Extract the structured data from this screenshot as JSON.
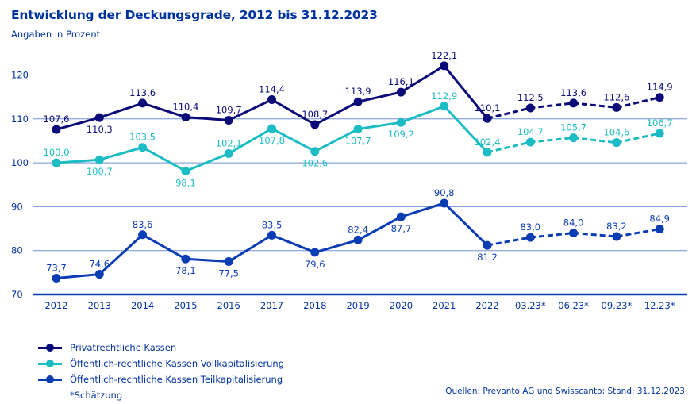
{
  "header": {
    "title": "Entwicklung der Deckungsgrade, 2012 bis 31.12.2023",
    "subtitle": "Angaben in Prozent"
  },
  "footer": {
    "note": "*Schätzung",
    "source": "Quellen: Prevanto AG und Swisscanto; Stand: 31.12.2023"
  },
  "chart_data": {
    "type": "line",
    "title": "Entwicklung der Deckungsgrade, 2012 bis 31.12.2023",
    "subtitle": "Angaben in Prozent",
    "xlabel": "",
    "ylabel": "",
    "ylim": [
      70,
      125
    ],
    "yticks": [
      70,
      80,
      90,
      100,
      110,
      120
    ],
    "grid": true,
    "legend_position": "bottom-left",
    "categories": [
      "2012",
      "2013",
      "2014",
      "2015",
      "2016",
      "2017",
      "2018",
      "2019",
      "2020",
      "2021",
      "2022",
      "03.23*",
      "06.23*",
      "09.23*",
      "12.23*"
    ],
    "estimate_start_index": 10,
    "series": [
      {
        "name": "Privatrechtliche Kassen",
        "color": "#0a0a78",
        "values": [
          107.6,
          110.3,
          113.6,
          110.4,
          109.7,
          114.4,
          108.7,
          113.9,
          116.1,
          122.1,
          110.1,
          112.5,
          113.6,
          112.6,
          114.9
        ],
        "labels": [
          "107,6",
          "110,3",
          "113,6",
          "110,4",
          "109,7",
          "114,4",
          "108,7",
          "113,9",
          "116,1",
          "122,1",
          "110,1",
          "112,5",
          "113,6",
          "112,6",
          "114,9"
        ],
        "label_pos": [
          "above",
          "below",
          "above",
          "above",
          "above",
          "above",
          "above",
          "above",
          "above",
          "above",
          "above",
          "above",
          "above",
          "above",
          "above"
        ]
      },
      {
        "name": "Öffentlich-rechtliche Kassen Vollkapitalisierung",
        "color": "#1cbcc4",
        "values": [
          100.0,
          100.7,
          103.5,
          98.1,
          102.1,
          107.8,
          102.6,
          107.7,
          109.2,
          112.9,
          102.4,
          104.7,
          105.7,
          104.6,
          106.7
        ],
        "labels": [
          "100,0",
          "100,7",
          "103,5",
          "98,1",
          "102,1",
          "107,8",
          "102,6",
          "107,7",
          "109,2",
          "112,9",
          "102,4",
          "104,7",
          "105,7",
          "104,6",
          "106,7"
        ],
        "label_pos": [
          "above",
          "below",
          "above",
          "below",
          "above",
          "below",
          "below",
          "below",
          "below",
          "above",
          "above",
          "above",
          "above",
          "above",
          "above"
        ]
      },
      {
        "name": "Öffentlich-rechtliche Kassen Teilkapitalisierung",
        "color": "#0a3cb4",
        "values": [
          73.7,
          74.6,
          83.6,
          78.1,
          77.5,
          83.5,
          79.6,
          82.4,
          87.7,
          90.8,
          81.2,
          83.0,
          84.0,
          83.2,
          84.9
        ],
        "labels": [
          "73,7",
          "74,6",
          "83,6",
          "78,1",
          "77,5",
          "83,5",
          "79,6",
          "82,4",
          "87,7",
          "90,8",
          "81,2",
          "83,0",
          "84,0",
          "83,2",
          "84,9"
        ],
        "label_pos": [
          "above",
          "above",
          "above",
          "below",
          "below",
          "above",
          "below",
          "above",
          "below",
          "above",
          "below",
          "above",
          "above",
          "above",
          "above"
        ]
      }
    ]
  }
}
